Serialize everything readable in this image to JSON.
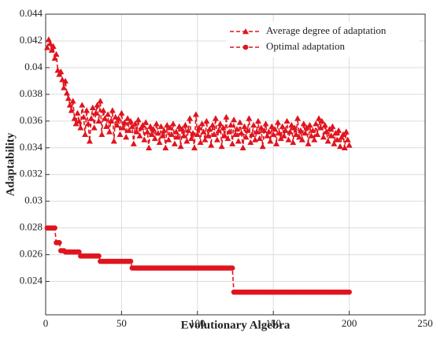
{
  "chart_data": {
    "type": "line",
    "xlabel": "Evolutionary Algebra",
    "ylabel": "Adaptability",
    "xlim": [
      0,
      250
    ],
    "xticks": [
      0,
      50,
      100,
      150,
      200,
      250
    ],
    "ylim": [
      0.0215,
      0.044
    ],
    "yticks": [
      0.024,
      0.026,
      0.028,
      0.03,
      0.032,
      0.034,
      0.036,
      0.038,
      0.04,
      0.042,
      0.044
    ],
    "grid": true,
    "legend": "upper right",
    "x": [
      1,
      2,
      3,
      4,
      5,
      6,
      7,
      8,
      9,
      10,
      11,
      12,
      13,
      14,
      15,
      16,
      17,
      18,
      19,
      20,
      21,
      22,
      23,
      24,
      25,
      26,
      27,
      28,
      29,
      30,
      31,
      32,
      33,
      34,
      35,
      36,
      37,
      38,
      39,
      40,
      41,
      42,
      43,
      44,
      45,
      46,
      47,
      48,
      49,
      50,
      51,
      52,
      53,
      54,
      55,
      56,
      57,
      58,
      59,
      60,
      61,
      62,
      63,
      64,
      65,
      66,
      67,
      68,
      69,
      70,
      71,
      72,
      73,
      74,
      75,
      76,
      77,
      78,
      79,
      80,
      81,
      82,
      83,
      84,
      85,
      86,
      87,
      88,
      89,
      90,
      91,
      92,
      93,
      94,
      95,
      96,
      97,
      98,
      99,
      100,
      101,
      102,
      103,
      104,
      105,
      106,
      107,
      108,
      109,
      110,
      111,
      112,
      113,
      114,
      115,
      116,
      117,
      118,
      119,
      120,
      121,
      122,
      123,
      124,
      125,
      126,
      127,
      128,
      129,
      130,
      131,
      132,
      133,
      134,
      135,
      136,
      137,
      138,
      139,
      140,
      141,
      142,
      143,
      144,
      145,
      146,
      147,
      148,
      149,
      150,
      151,
      152,
      153,
      154,
      155,
      156,
      157,
      158,
      159,
      160,
      161,
      162,
      163,
      164,
      165,
      166,
      167,
      168,
      169,
      170,
      171,
      172,
      173,
      174,
      175,
      176,
      177,
      178,
      179,
      180,
      181,
      182,
      183,
      184,
      185,
      186,
      187,
      188,
      189,
      190,
      191,
      192,
      193,
      194,
      195,
      196,
      197,
      198,
      199,
      200
    ],
    "series": [
      {
        "name": "Average degree of adaptation",
        "color": "#e0141e",
        "marker": "triangle",
        "values": [
          0.0415,
          0.0421,
          0.0418,
          0.0413,
          0.0416,
          0.0407,
          0.041,
          0.0398,
          0.0395,
          0.0397,
          0.0391,
          0.0385,
          0.039,
          0.0381,
          0.0377,
          0.0372,
          0.0368,
          0.0375,
          0.0362,
          0.0358,
          0.0366,
          0.036,
          0.0355,
          0.0372,
          0.0363,
          0.035,
          0.0368,
          0.0358,
          0.0345,
          0.0362,
          0.037,
          0.0355,
          0.0366,
          0.0372,
          0.036,
          0.0375,
          0.035,
          0.0368,
          0.0362,
          0.0356,
          0.0365,
          0.0352,
          0.036,
          0.0368,
          0.0345,
          0.0363,
          0.0357,
          0.0362,
          0.035,
          0.0366,
          0.0355,
          0.0359,
          0.0348,
          0.0362,
          0.0353,
          0.036,
          0.0356,
          0.0343,
          0.0358,
          0.0352,
          0.0361,
          0.0349,
          0.0355,
          0.0357,
          0.0346,
          0.0359,
          0.0352,
          0.034,
          0.0356,
          0.035,
          0.0354,
          0.0347,
          0.0358,
          0.0351,
          0.0344,
          0.0356,
          0.0349,
          0.0353,
          0.034,
          0.0357,
          0.0346,
          0.0355,
          0.035,
          0.0358,
          0.0343,
          0.0352,
          0.0348,
          0.0356,
          0.0341,
          0.0354,
          0.0349,
          0.0357,
          0.0345,
          0.0353,
          0.0362,
          0.0347,
          0.0351,
          0.034,
          0.0365,
          0.035,
          0.0355,
          0.0344,
          0.0358,
          0.0352,
          0.0346,
          0.036,
          0.0349,
          0.0354,
          0.0342,
          0.0357,
          0.035,
          0.0362,
          0.0346,
          0.0353,
          0.0358,
          0.0341,
          0.0355,
          0.0349,
          0.0363,
          0.0347,
          0.0352,
          0.0357,
          0.0343,
          0.0361,
          0.035,
          0.0354,
          0.0345,
          0.0359,
          0.0351,
          0.034,
          0.0356,
          0.0348,
          0.0353,
          0.0362,
          0.0344,
          0.035,
          0.0357,
          0.0346,
          0.0352,
          0.036,
          0.0347,
          0.0355,
          0.0341,
          0.0353,
          0.0358,
          0.0349,
          0.0352,
          0.0345,
          0.0356,
          0.035,
          0.0354,
          0.0343,
          0.0359,
          0.0351,
          0.0347,
          0.0356,
          0.0349,
          0.0353,
          0.036,
          0.0346,
          0.0352,
          0.0357,
          0.0344,
          0.0355,
          0.035,
          0.0362,
          0.0348,
          0.0353,
          0.0346,
          0.0358,
          0.0351,
          0.0355,
          0.0343,
          0.0357,
          0.0349,
          0.0353,
          0.0346,
          0.0358,
          0.035,
          0.0362,
          0.0355,
          0.036,
          0.0348,
          0.0357,
          0.0352,
          0.0345,
          0.0354,
          0.0349,
          0.0356,
          0.0343,
          0.0351,
          0.0346,
          0.0353,
          0.0341,
          0.0348,
          0.035,
          0.034,
          0.0352,
          0.0346,
          0.0342
        ]
      },
      {
        "name": "Optimal adaptation",
        "color": "#e0141e",
        "marker": "circle",
        "values": [
          0.028,
          0.028,
          0.028,
          0.028,
          0.028,
          0.028,
          0.0269,
          0.0269,
          0.0269,
          0.0263,
          0.0263,
          0.0263,
          0.0262,
          0.0262,
          0.0262,
          0.0262,
          0.0262,
          0.0262,
          0.0262,
          0.0262,
          0.0262,
          0.0262,
          0.0259,
          0.0259,
          0.0259,
          0.0259,
          0.0259,
          0.0259,
          0.0259,
          0.0259,
          0.0259,
          0.0259,
          0.0259,
          0.0259,
          0.0259,
          0.0255,
          0.0255,
          0.0255,
          0.0255,
          0.0255,
          0.0255,
          0.0255,
          0.0255,
          0.0255,
          0.0255,
          0.0255,
          0.0255,
          0.0255,
          0.0255,
          0.0255,
          0.0255,
          0.0255,
          0.0255,
          0.0255,
          0.0255,
          0.0255,
          0.025,
          0.025,
          0.025,
          0.025,
          0.025,
          0.025,
          0.025,
          0.025,
          0.025,
          0.025,
          0.025,
          0.025,
          0.025,
          0.025,
          0.025,
          0.025,
          0.025,
          0.025,
          0.025,
          0.025,
          0.025,
          0.025,
          0.025,
          0.025,
          0.025,
          0.025,
          0.025,
          0.025,
          0.025,
          0.025,
          0.025,
          0.025,
          0.025,
          0.025,
          0.025,
          0.025,
          0.025,
          0.025,
          0.025,
          0.025,
          0.025,
          0.025,
          0.025,
          0.025,
          0.025,
          0.025,
          0.025,
          0.025,
          0.025,
          0.025,
          0.025,
          0.025,
          0.025,
          0.025,
          0.025,
          0.025,
          0.025,
          0.025,
          0.025,
          0.025,
          0.025,
          0.025,
          0.025,
          0.025,
          0.025,
          0.025,
          0.025,
          0.0232,
          0.0232,
          0.0232,
          0.0232,
          0.0232,
          0.0232,
          0.0232,
          0.0232,
          0.0232,
          0.0232,
          0.0232,
          0.0232,
          0.0232,
          0.0232,
          0.0232,
          0.0232,
          0.0232,
          0.0232,
          0.0232,
          0.0232,
          0.0232,
          0.0232,
          0.0232,
          0.0232,
          0.0232,
          0.0232,
          0.0232,
          0.0232,
          0.0232,
          0.0232,
          0.0232,
          0.0232,
          0.0232,
          0.0232,
          0.0232,
          0.0232,
          0.0232,
          0.0232,
          0.0232,
          0.0232,
          0.0232,
          0.0232,
          0.0232,
          0.0232,
          0.0232,
          0.0232,
          0.0232,
          0.0232,
          0.0232,
          0.0232,
          0.0232,
          0.0232,
          0.0232,
          0.0232,
          0.0232,
          0.0232,
          0.0232,
          0.0232,
          0.0232,
          0.0232,
          0.0232,
          0.0232,
          0.0232,
          0.0232,
          0.0232,
          0.0232,
          0.0232,
          0.0232,
          0.0232,
          0.0232,
          0.0232,
          0.0232,
          0.0232,
          0.0232,
          0.0232,
          0.0232,
          0.0232
        ]
      }
    ]
  }
}
